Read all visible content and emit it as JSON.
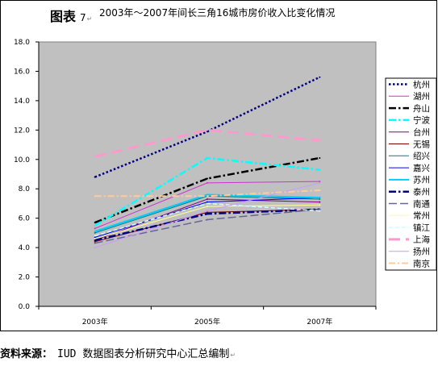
{
  "figure_label": {
    "prefix": "图表",
    "number": "7",
    "mark": "↵"
  },
  "chart_data": {
    "type": "line",
    "title": "2003年～2007年间长三角16城市房价收入比变化情况",
    "categories": [
      "2003年",
      "2005年",
      "2007年"
    ],
    "ylim": [
      0,
      18
    ],
    "yticks": [
      "0.0",
      "2.0",
      "4.0",
      "6.0",
      "8.0",
      "10.0",
      "12.0",
      "14.0",
      "16.0",
      "18.0"
    ],
    "grid": false,
    "legend_position": "right",
    "plot_background": "#c0c0c0",
    "series": [
      {
        "name": "杭州",
        "values": [
          8.8,
          11.9,
          15.6
        ],
        "color": "#000080",
        "style": "dotted-thick"
      },
      {
        "name": "湖州",
        "values": [
          5.3,
          8.4,
          8.5
        ],
        "color": "#cc33cc",
        "style": "solid"
      },
      {
        "name": "舟山",
        "values": [
          5.7,
          8.7,
          10.1
        ],
        "color": "#000000",
        "style": "dash-dot-thick"
      },
      {
        "name": "宁波",
        "values": [
          5.5,
          10.1,
          9.3
        ],
        "color": "#00ffff",
        "style": "dash-dot-thick"
      },
      {
        "name": "台州",
        "values": [
          4.5,
          7.3,
          7.1
        ],
        "color": "#800080",
        "style": "solid"
      },
      {
        "name": "无锡",
        "values": [
          4.4,
          6.4,
          6.6
        ],
        "color": "#800000",
        "style": "solid"
      },
      {
        "name": "绍兴",
        "values": [
          5.0,
          7.5,
          7.3
        ],
        "color": "#008080",
        "style": "solid"
      },
      {
        "name": "嘉兴",
        "values": [
          4.7,
          7.1,
          7.4
        ],
        "color": "#0000ff",
        "style": "solid"
      },
      {
        "name": "苏州",
        "values": [
          5.1,
          7.6,
          7.4
        ],
        "color": "#00ccff",
        "style": "solid-thick"
      },
      {
        "name": "泰州",
        "values": [
          4.5,
          6.3,
          6.6
        ],
        "color": "#000080",
        "style": "dash-dot-thick"
      },
      {
        "name": "南通",
        "values": [
          4.3,
          5.9,
          6.6
        ],
        "color": "#666699",
        "style": "long-dash"
      },
      {
        "name": "常州",
        "values": [
          4.6,
          6.8,
          6.9
        ],
        "color": "#ffff99",
        "style": "solid"
      },
      {
        "name": "镇江",
        "values": [
          4.8,
          7.0,
          6.5
        ],
        "color": "#ccffff",
        "style": "dashed"
      },
      {
        "name": "上海",
        "values": [
          10.2,
          12.0,
          11.3
        ],
        "color": "#ff99cc",
        "style": "dashed-thick"
      },
      {
        "name": "扬州",
        "values": [
          4.0,
          6.5,
          8.4
        ],
        "color": "#cc99ff",
        "style": "solid"
      },
      {
        "name": "南京",
        "values": [
          7.5,
          7.5,
          7.9
        ],
        "color": "#ffcc99",
        "style": "dash-dot"
      }
    ]
  },
  "footer": {
    "source_label": "资料来源：",
    "source_text": "IUD 数据图表分析研究中心汇总编制",
    "mark": "↵"
  }
}
